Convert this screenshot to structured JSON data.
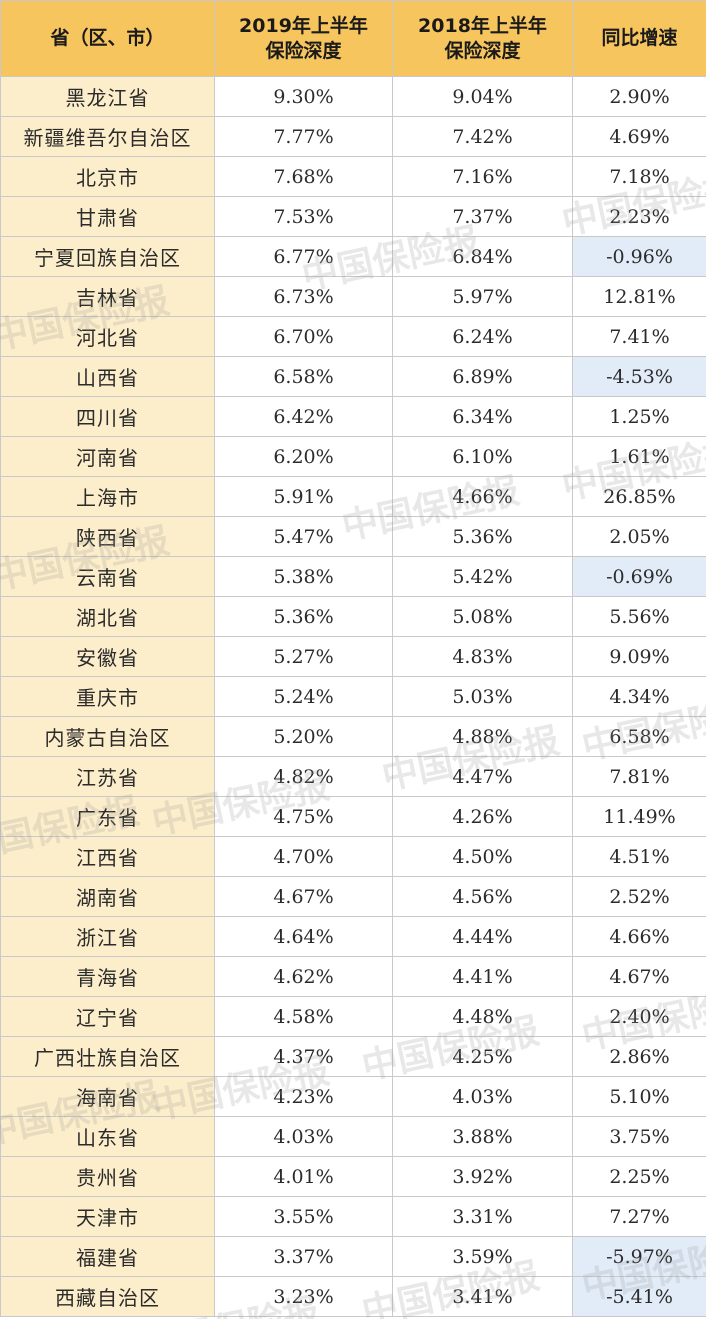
{
  "watermark": "中国保险报",
  "colors": {
    "header_bg": "#f7c55e",
    "province_bg": "#fdeecb",
    "negative_growth_bg": "#e2ecf8"
  },
  "chart_data": {
    "type": "table",
    "columns": [
      {
        "line1": "省（区、市）",
        "line2": ""
      },
      {
        "line1": "2019年上半年",
        "line2": "保险深度"
      },
      {
        "line1": "2018年上半年",
        "line2": "保险深度"
      },
      {
        "line1": "同比增速",
        "line2": ""
      }
    ],
    "rows": [
      {
        "province": "黑龙江省",
        "y2019": "9.30%",
        "y2018": "9.04%",
        "growth": "2.90%"
      },
      {
        "province": "新疆维吾尔自治区",
        "y2019": "7.77%",
        "y2018": "7.42%",
        "growth": "4.69%"
      },
      {
        "province": "北京市",
        "y2019": "7.68%",
        "y2018": "7.16%",
        "growth": "7.18%"
      },
      {
        "province": "甘肃省",
        "y2019": "7.53%",
        "y2018": "7.37%",
        "growth": "2.23%"
      },
      {
        "province": "宁夏回族自治区",
        "y2019": "6.77%",
        "y2018": "6.84%",
        "growth": "-0.96%"
      },
      {
        "province": "吉林省",
        "y2019": "6.73%",
        "y2018": "5.97%",
        "growth": "12.81%"
      },
      {
        "province": "河北省",
        "y2019": "6.70%",
        "y2018": "6.24%",
        "growth": "7.41%"
      },
      {
        "province": "山西省",
        "y2019": "6.58%",
        "y2018": "6.89%",
        "growth": "-4.53%"
      },
      {
        "province": "四川省",
        "y2019": "6.42%",
        "y2018": "6.34%",
        "growth": "1.25%"
      },
      {
        "province": "河南省",
        "y2019": "6.20%",
        "y2018": "6.10%",
        "growth": "1.61%"
      },
      {
        "province": "上海市",
        "y2019": "5.91%",
        "y2018": "4.66%",
        "growth": "26.85%"
      },
      {
        "province": "陕西省",
        "y2019": "5.47%",
        "y2018": "5.36%",
        "growth": "2.05%"
      },
      {
        "province": "云南省",
        "y2019": "5.38%",
        "y2018": "5.42%",
        "growth": "-0.69%"
      },
      {
        "province": "湖北省",
        "y2019": "5.36%",
        "y2018": "5.08%",
        "growth": "5.56%"
      },
      {
        "province": "安徽省",
        "y2019": "5.27%",
        "y2018": "4.83%",
        "growth": "9.09%"
      },
      {
        "province": "重庆市",
        "y2019": "5.24%",
        "y2018": "5.03%",
        "growth": "4.34%"
      },
      {
        "province": "内蒙古自治区",
        "y2019": "5.20%",
        "y2018": "4.88%",
        "growth": "6.58%"
      },
      {
        "province": "江苏省",
        "y2019": "4.82%",
        "y2018": "4.47%",
        "growth": "7.81%"
      },
      {
        "province": "广东省",
        "y2019": "4.75%",
        "y2018": "4.26%",
        "growth": "11.49%"
      },
      {
        "province": "江西省",
        "y2019": "4.70%",
        "y2018": "4.50%",
        "growth": "4.51%"
      },
      {
        "province": "湖南省",
        "y2019": "4.67%",
        "y2018": "4.56%",
        "growth": "2.52%"
      },
      {
        "province": "浙江省",
        "y2019": "4.64%",
        "y2018": "4.44%",
        "growth": "4.66%"
      },
      {
        "province": "青海省",
        "y2019": "4.62%",
        "y2018": "4.41%",
        "growth": "4.67%"
      },
      {
        "province": "辽宁省",
        "y2019": "4.58%",
        "y2018": "4.48%",
        "growth": "2.40%"
      },
      {
        "province": "广西壮族自治区",
        "y2019": "4.37%",
        "y2018": "4.25%",
        "growth": "2.86%"
      },
      {
        "province": "海南省",
        "y2019": "4.23%",
        "y2018": "4.03%",
        "growth": "5.10%"
      },
      {
        "province": "山东省",
        "y2019": "4.03%",
        "y2018": "3.88%",
        "growth": "3.75%"
      },
      {
        "province": "贵州省",
        "y2019": "4.01%",
        "y2018": "3.92%",
        "growth": "2.25%"
      },
      {
        "province": "天津市",
        "y2019": "3.55%",
        "y2018": "3.31%",
        "growth": "7.27%"
      },
      {
        "province": "福建省",
        "y2019": "3.37%",
        "y2018": "3.59%",
        "growth": "-5.97%"
      },
      {
        "province": "西藏自治区",
        "y2019": "3.23%",
        "y2018": "3.41%",
        "growth": "-5.41%"
      }
    ]
  }
}
